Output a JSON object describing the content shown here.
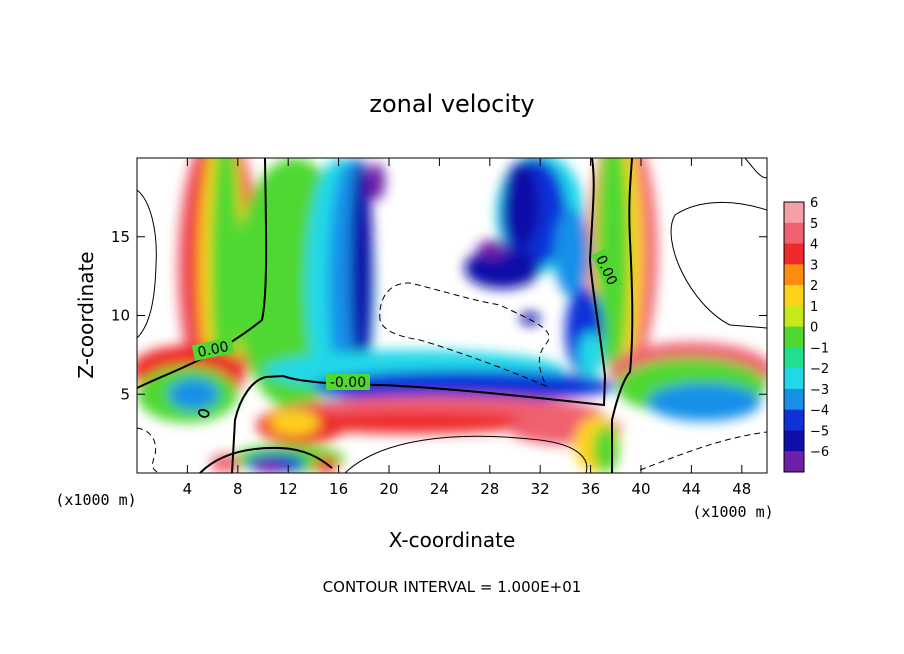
{
  "chart_data": {
    "type": "heatmap",
    "title": "zonal velocity",
    "xlabel": "X-coordinate",
    "ylabel": "Z-coordinate",
    "x_unit_label": "(x1000 m)",
    "y_unit_label": "(x1000 m)",
    "xlim": [
      0,
      50
    ],
    "ylim": [
      0,
      20
    ],
    "x_ticks": [
      4,
      8,
      12,
      16,
      20,
      24,
      28,
      32,
      36,
      40,
      44,
      48
    ],
    "y_ticks": [
      5,
      10,
      15
    ],
    "colorbar": {
      "levels": [
        6,
        5,
        4,
        3,
        2,
        1,
        0,
        -1,
        -2,
        -3,
        -4,
        -5,
        -6
      ],
      "colors": [
        "#f4a0a8",
        "#f06070",
        "#ee2a2a",
        "#ff8a10",
        "#ffd21a",
        "#c8e81a",
        "#50d830",
        "#20e090",
        "#20d8e8",
        "#1890e8",
        "#1030d8",
        "#1010a8",
        "#7020a8"
      ]
    },
    "contour_labels": [
      "0.00",
      "-0.00",
      "0.00"
    ],
    "footer": "CONTOUR INTERVAL = 1.000E+01",
    "regions": [
      {
        "kind": "ellipse",
        "cx": 6.5,
        "cy": 13,
        "rx": 3.3,
        "ry": 9,
        "value": 5
      },
      {
        "kind": "ellipse",
        "cx": 6.6,
        "cy": 13,
        "rx": 2.6,
        "ry": 9,
        "value": 4
      },
      {
        "kind": "ellipse",
        "cx": 6.8,
        "cy": 13,
        "rx": 1.9,
        "ry": 9,
        "value": 2
      },
      {
        "kind": "ellipse",
        "cx": 7.0,
        "cy": 13,
        "rx": 1.2,
        "ry": 9,
        "value": 0
      },
      {
        "kind": "ellipse",
        "cx": 38.5,
        "cy": 14,
        "rx": 2.8,
        "ry": 8,
        "value": 5
      },
      {
        "kind": "ellipse",
        "cx": 38.2,
        "cy": 14,
        "rx": 2.0,
        "ry": 8,
        "value": 2
      },
      {
        "kind": "ellipse",
        "cx": 37.8,
        "cy": 14,
        "rx": 1.3,
        "ry": 8,
        "value": 0
      },
      {
        "kind": "ellipse",
        "cx": 44,
        "cy": 6.5,
        "rx": 6.5,
        "ry": 1.8,
        "value": 5
      },
      {
        "kind": "ellipse",
        "cx": 44,
        "cy": 5.5,
        "rx": 6.0,
        "ry": 1.8,
        "value": 0
      },
      {
        "kind": "ellipse",
        "cx": 45,
        "cy": 4.5,
        "rx": 4.5,
        "ry": 1.2,
        "value": -3
      },
      {
        "kind": "ellipse",
        "cx": 4,
        "cy": 6.5,
        "rx": 4.5,
        "ry": 1.6,
        "value": 4
      },
      {
        "kind": "ellipse",
        "cx": 4,
        "cy": 5.0,
        "rx": 4.0,
        "ry": 1.8,
        "value": 0
      },
      {
        "kind": "ellipse",
        "cx": 4.5,
        "cy": 5.0,
        "rx": 2.0,
        "ry": 1.0,
        "value": -3
      },
      {
        "kind": "ellipse",
        "cx": 12.5,
        "cy": 12,
        "rx": 4.8,
        "ry": 8,
        "value": 0
      },
      {
        "kind": "ellipse",
        "cx": 16,
        "cy": 12,
        "rx": 2.6,
        "ry": 8,
        "value": -2
      },
      {
        "kind": "ellipse",
        "cx": 17,
        "cy": 12,
        "rx": 1.8,
        "ry": 8,
        "value": -3
      },
      {
        "kind": "ellipse",
        "cx": 17.8,
        "cy": 13,
        "rx": 0.9,
        "ry": 7,
        "value": -5
      },
      {
        "kind": "ellipse",
        "cx": 19,
        "cy": 18.5,
        "rx": 0.7,
        "ry": 1.2,
        "value": -6
      },
      {
        "kind": "ellipse",
        "cx": 22,
        "cy": 6.5,
        "rx": 12,
        "ry": 1.3,
        "value": -2
      },
      {
        "kind": "ellipse",
        "cx": 26,
        "cy": 5.5,
        "rx": 12,
        "ry": 1.0,
        "value": -4
      },
      {
        "kind": "ellipse",
        "cx": 24,
        "cy": 3.8,
        "rx": 13,
        "ry": 1.1,
        "value": 5
      },
      {
        "kind": "ellipse",
        "cx": 22,
        "cy": 3.2,
        "rx": 10,
        "ry": 0.7,
        "value": 4
      },
      {
        "kind": "ellipse",
        "cx": 13,
        "cy": 3.0,
        "rx": 3.5,
        "ry": 1.2,
        "value": 4
      },
      {
        "kind": "ellipse",
        "cx": 12.5,
        "cy": 3.2,
        "rx": 2.0,
        "ry": 0.8,
        "value": 2
      },
      {
        "kind": "ellipse",
        "cx": 34,
        "cy": 2.8,
        "rx": 4.5,
        "ry": 1.0,
        "value": 5
      },
      {
        "kind": "ellipse",
        "cx": 36.5,
        "cy": 1.8,
        "rx": 1.8,
        "ry": 1.8,
        "value": 2
      },
      {
        "kind": "ellipse",
        "cx": 37.2,
        "cy": 1.5,
        "rx": 1.0,
        "ry": 1.5,
        "value": 0
      },
      {
        "kind": "ellipse",
        "cx": 12,
        "cy": 0.9,
        "rx": 4.5,
        "ry": 0.9,
        "value": 0
      },
      {
        "kind": "ellipse",
        "cx": 11,
        "cy": 0.6,
        "rx": 2.3,
        "ry": 0.6,
        "value": -4
      },
      {
        "kind": "ellipse",
        "cx": 10.5,
        "cy": 0.4,
        "rx": 1.2,
        "ry": 0.4,
        "value": -6
      },
      {
        "kind": "ellipse",
        "cx": 7,
        "cy": 0.6,
        "rx": 1.2,
        "ry": 0.6,
        "value": 5
      },
      {
        "kind": "ellipse",
        "cx": 15,
        "cy": 0.5,
        "rx": 1.0,
        "ry": 0.5,
        "value": 4
      },
      {
        "kind": "ellipse",
        "cx": 32,
        "cy": 16.5,
        "rx": 3.5,
        "ry": 3.8,
        "value": -2
      },
      {
        "kind": "ellipse",
        "cx": 31.5,
        "cy": 16.5,
        "rx": 2.6,
        "ry": 3.5,
        "value": -4
      },
      {
        "kind": "ellipse",
        "cx": 30.5,
        "cy": 17,
        "rx": 1.5,
        "ry": 2.8,
        "value": -5
      },
      {
        "kind": "ellipse",
        "cx": 34.5,
        "cy": 14,
        "rx": 1.4,
        "ry": 2.8,
        "value": -3
      },
      {
        "kind": "ellipse",
        "cx": 29,
        "cy": 13,
        "rx": 3.0,
        "ry": 1.3,
        "value": -5
      },
      {
        "kind": "ellipse",
        "cx": 28.2,
        "cy": 14.2,
        "rx": 1.2,
        "ry": 0.6,
        "value": -6
      },
      {
        "kind": "ellipse",
        "cx": 31.2,
        "cy": 9.8,
        "rx": 0.8,
        "ry": 0.4,
        "value": -5
      },
      {
        "kind": "ellipse",
        "cx": 35.5,
        "cy": 9,
        "rx": 1.5,
        "ry": 2.8,
        "value": -4
      },
      {
        "kind": "ellipse",
        "cx": 36.0,
        "cy": 7.5,
        "rx": 1.0,
        "ry": 1.5,
        "value": -2
      }
    ]
  }
}
